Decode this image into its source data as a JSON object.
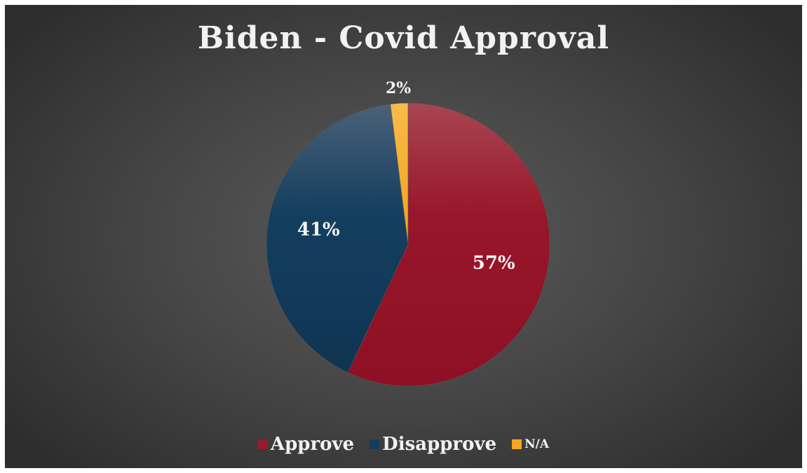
{
  "chart_data": {
    "type": "pie",
    "title": "Biden - Covid Approval",
    "categories": [
      "Approve",
      "Disapprove",
      "N/A"
    ],
    "values": [
      57,
      41,
      2
    ],
    "data_labels": [
      "57%",
      "41%",
      "2%"
    ],
    "colors": [
      "#9a1a2c",
      "#153e5e",
      "#f5a623"
    ],
    "legend_position": "bottom",
    "background": "#444444"
  }
}
